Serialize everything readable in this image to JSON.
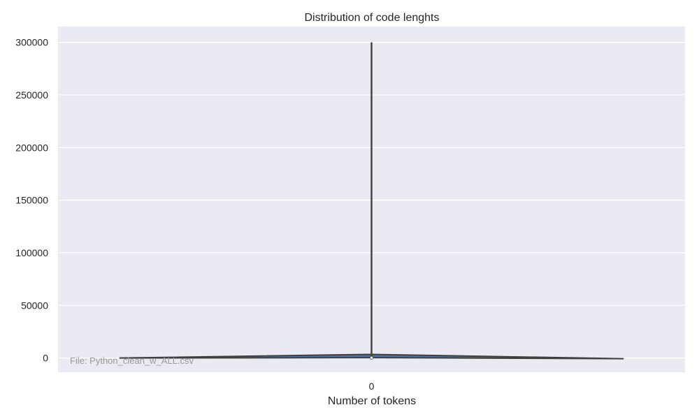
{
  "chart_data": {
    "type": "violin",
    "title": "Distribution of code lenghts",
    "xlabel": "Number of tokens",
    "ylabel": "",
    "categories": [
      "0"
    ],
    "ylim": [
      -13500,
      315000
    ],
    "yticks": [
      0,
      50000,
      100000,
      150000,
      200000,
      250000,
      300000
    ],
    "grid": true,
    "distribution": {
      "category": "0",
      "max": 300000,
      "min": 0,
      "q1": 200,
      "median": 600,
      "q3": 1500,
      "mode": 800
    },
    "annotation": "File: Python_clean_w_ALL.csv",
    "colors": {
      "background": "#eaeaf2",
      "grid": "#ffffff",
      "violin_fill": "#4c72b0",
      "violin_edge": "#3f3f3f",
      "box": "#3f3f3f",
      "median_marker": "#ffffff",
      "annotation_text": "#9a9a9a"
    }
  }
}
